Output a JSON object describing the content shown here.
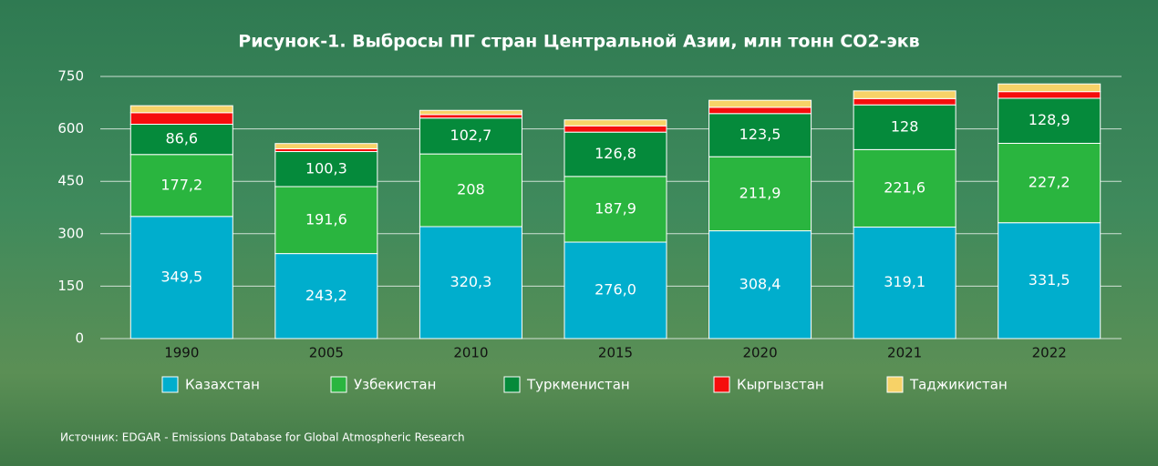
{
  "chart_data": {
    "type": "stacked_bar",
    "title": "Рисунок-1. Выбросы ПГ стран Центральной Азии, млн тонн СО2-экв",
    "source": "Источник: EDGAR - Emissions Database for Global Atmospheric Research",
    "categories": [
      "1990",
      "2005",
      "2010",
      "2015",
      "2020",
      "2021",
      "2022"
    ],
    "series": [
      {
        "name": "Казахстан",
        "color": "#00aecd",
        "values": [
          349.5,
          243.2,
          320.3,
          276.0,
          308.4,
          319.1,
          331.5
        ],
        "value_labels": [
          "349,5",
          "243,2",
          "320,3",
          "276,0",
          "308,4",
          "319,1",
          "331,5"
        ]
      },
      {
        "name": "Узбекистан",
        "color": "#2ab53f",
        "values": [
          177.2,
          191.6,
          208,
          187.9,
          211.9,
          221.6,
          227.2
        ],
        "value_labels": [
          "177,2",
          "191,6",
          "208",
          "187,9",
          "211,9",
          "221,6",
          "227,2"
        ]
      },
      {
        "name": "Туркменистан",
        "color": "#058a3b",
        "values": [
          86.6,
          100.3,
          102.7,
          126.8,
          123.5,
          128,
          128.9
        ],
        "value_labels": [
          "86,6",
          "100,3",
          "102,7",
          "126,8",
          "123,5",
          "128",
          "128,9"
        ]
      },
      {
        "name": "Кыргызстан",
        "color": "#f50d0d",
        "values": [
          33,
          8,
          10,
          18,
          18,
          18,
          19
        ]
      },
      {
        "name": "Таджикистан",
        "color": "#f7d267",
        "values": [
          20,
          15,
          12,
          17,
          20,
          22,
          22
        ]
      }
    ],
    "ylim": [
      0,
      750
    ],
    "yticks": [
      0,
      150,
      300,
      450,
      600,
      750
    ],
    "grid": true
  }
}
